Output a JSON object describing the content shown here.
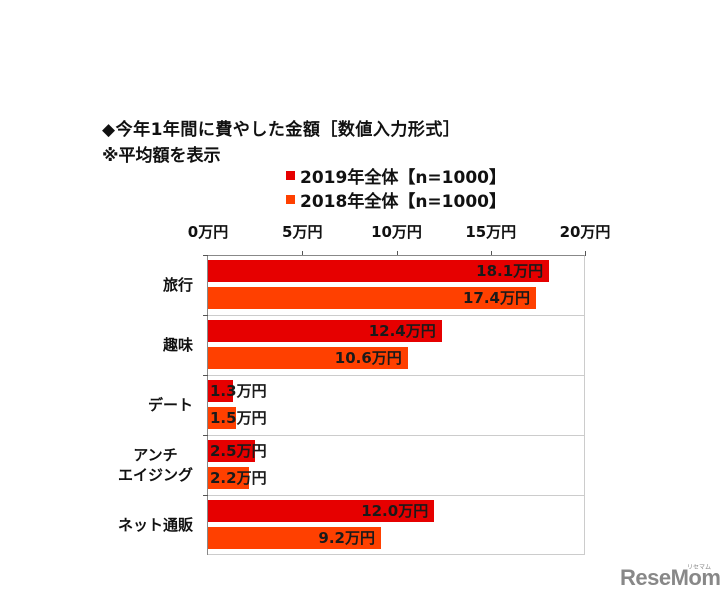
{
  "title": "◆今年1年間に費やした金額［数値入力形式］",
  "subtitle": "※平均額を表示",
  "legend": [
    {
      "label": "2019年全体【n=1000】",
      "color": "#e60000"
    },
    {
      "label": "2018年全体【n=1000】",
      "color": "#ff4000"
    }
  ],
  "axis": {
    "ticks": [
      "0万円",
      "5万円",
      "10万円",
      "15万円",
      "20万円"
    ]
  },
  "categories": [
    {
      "label": "旅行",
      "values": [
        "18.1万円",
        "17.4万円"
      ]
    },
    {
      "label": "趣味",
      "values": [
        "12.4万円",
        "10.6万円"
      ]
    },
    {
      "label": "デート",
      "values": [
        "1.3万円",
        "1.5万円"
      ]
    },
    {
      "label": "アンチ\nエイジング",
      "values": [
        "2.5万円",
        "2.2万円"
      ]
    },
    {
      "label": "ネット通販",
      "values": [
        "12.0万円",
        "9.2万円"
      ]
    }
  ],
  "watermark": {
    "text": "ReseMom",
    "sub": "リセマム"
  },
  "chart_data": {
    "type": "bar",
    "orientation": "horizontal",
    "title": "◆今年1年間に費やした金額［数値入力形式］",
    "subtitle": "※平均額を表示",
    "categories": [
      "旅行",
      "趣味",
      "デート",
      "アンチエイジング",
      "ネット通販"
    ],
    "series": [
      {
        "name": "2019年全体【n=1000】",
        "values": [
          18.1,
          12.4,
          1.3,
          2.5,
          12.0
        ],
        "color": "#e60000"
      },
      {
        "name": "2018年全体【n=1000】",
        "values": [
          17.4,
          10.6,
          1.5,
          2.2,
          9.2
        ],
        "color": "#ff4000"
      }
    ],
    "xlabel": "",
    "ylabel": "",
    "unit": "万円",
    "xlim": [
      0,
      20
    ],
    "xticks": [
      0,
      5,
      10,
      15,
      20
    ],
    "xtick_labels": [
      "0万円",
      "5万円",
      "10万円",
      "15万円",
      "20万円"
    ],
    "axis_position": "top",
    "legend_position": "top",
    "grid": false,
    "data_labels": true
  }
}
